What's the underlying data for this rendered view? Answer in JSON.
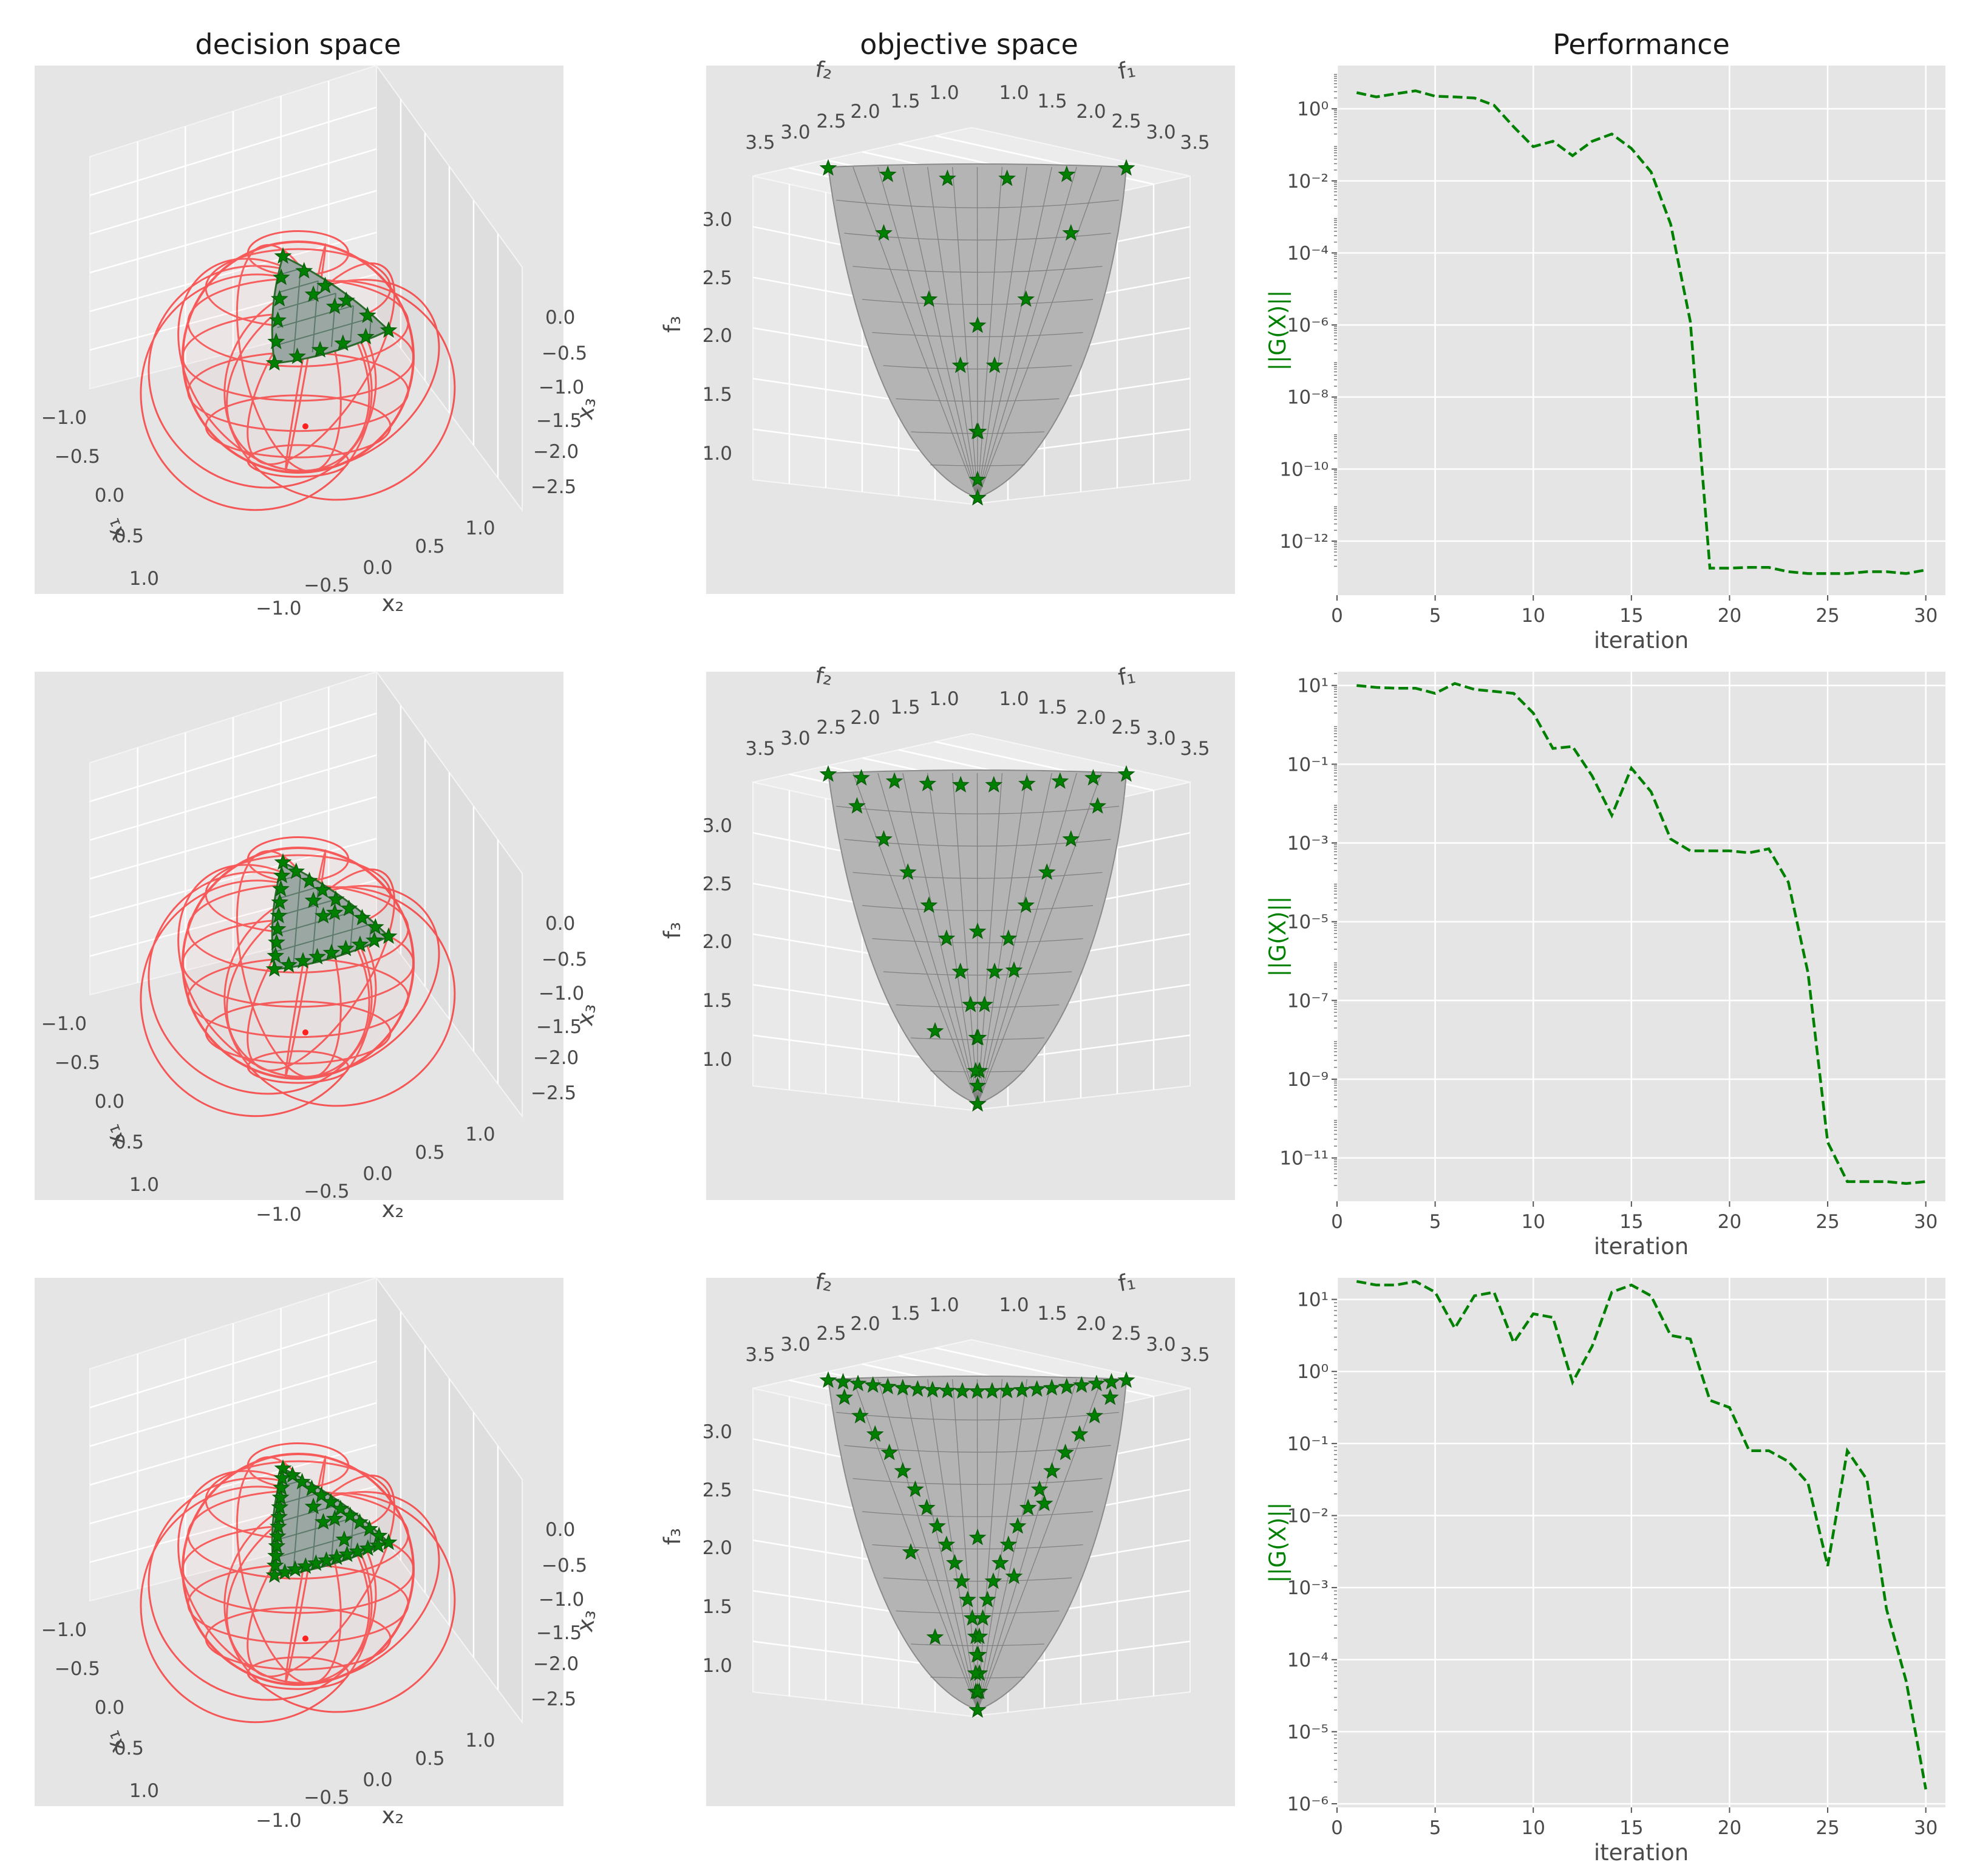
{
  "titles": [
    "decision space",
    "objective space",
    "Performance"
  ],
  "decision_space": {
    "x1_label": "x₁",
    "x2_label": "x₂",
    "x3_label": "x₃",
    "x1_ticks": [
      "−1.0",
      "−0.5",
      "0.0",
      "0.5",
      "1.0"
    ],
    "x2_ticks": [
      "−1.0",
      "−0.5",
      "0.0",
      "0.5",
      "1.0"
    ],
    "x3_ticks": [
      "0.0",
      "−0.5",
      "−1.0",
      "−1.5",
      "−2.0",
      "−2.5"
    ],
    "sphere_color": "#ff0000",
    "marker_color": "#008000"
  },
  "objective_space": {
    "f1_label": "f₁",
    "f2_label": "f₂",
    "f3_label": "f₃",
    "f1_ticks": [
      "1.0",
      "1.5",
      "2.0",
      "2.5",
      "3.0",
      "3.5"
    ],
    "f2_ticks": [
      "1.0",
      "1.5",
      "2.0",
      "2.5",
      "3.0",
      "3.5"
    ],
    "f3_ticks": [
      "3.0",
      "2.5",
      "2.0",
      "1.5",
      "1.0"
    ],
    "surface_color": "#b4b4b4",
    "marker_color": "#008000"
  },
  "chart_data": [
    {
      "type": "line",
      "title": "Performance",
      "xlabel": "iteration",
      "ylabel": "||G(X)||",
      "yscale": "log",
      "xlim": [
        0,
        31
      ],
      "xticks": [
        0,
        5,
        10,
        15,
        20,
        25,
        30
      ],
      "yexp_range": [
        -13.5,
        1.2
      ],
      "ytick_exps": [
        0,
        -2,
        -4,
        -6,
        -8,
        -10,
        -12
      ],
      "series": [
        {
          "name": "||G(X)||",
          "color": "#008000",
          "style": "dashed",
          "x": [
            1,
            2,
            3,
            4,
            5,
            6,
            7,
            8,
            9,
            10,
            11,
            12,
            13,
            14,
            15,
            16,
            17,
            18,
            19,
            20,
            21,
            22,
            23,
            24,
            25,
            26,
            27,
            28,
            29,
            30
          ],
          "y_log10": [
            0.45,
            0.33,
            0.42,
            0.5,
            0.35,
            0.33,
            0.3,
            0.1,
            -0.5,
            -1.05,
            -0.9,
            -1.3,
            -0.9,
            -0.7,
            -1.1,
            -1.75,
            -3.2,
            -5.9,
            -12.75,
            -12.75,
            -12.73,
            -12.73,
            -12.85,
            -12.9,
            -12.9,
            -12.9,
            -12.85,
            -12.85,
            -12.9,
            -12.8
          ]
        }
      ]
    },
    {
      "type": "line",
      "title": "",
      "xlabel": "iteration",
      "ylabel": "||G(X)||",
      "yscale": "log",
      "xlim": [
        0,
        31
      ],
      "xticks": [
        0,
        5,
        10,
        15,
        20,
        25,
        30
      ],
      "yexp_range": [
        -12.1,
        1.35
      ],
      "ytick_exps": [
        1,
        -1,
        -3,
        -5,
        -7,
        -9,
        -11
      ],
      "series": [
        {
          "name": "||G(X)||",
          "color": "#008000",
          "style": "dashed",
          "x": [
            1,
            2,
            3,
            4,
            5,
            6,
            7,
            8,
            9,
            10,
            11,
            12,
            13,
            14,
            15,
            16,
            17,
            18,
            19,
            20,
            21,
            22,
            23,
            24,
            25,
            26,
            27,
            28,
            29,
            30
          ],
          "y_log10": [
            1.0,
            0.95,
            0.93,
            0.93,
            0.8,
            1.05,
            0.9,
            0.85,
            0.8,
            0.3,
            -0.6,
            -0.55,
            -1.3,
            -2.3,
            -1.1,
            -1.7,
            -2.9,
            -3.2,
            -3.2,
            -3.2,
            -3.25,
            -3.15,
            -4.0,
            -6.3,
            -10.6,
            -11.6,
            -11.6,
            -11.6,
            -11.65,
            -11.6
          ]
        }
      ]
    },
    {
      "type": "line",
      "title": "",
      "xlabel": "iteration",
      "ylabel": "||G(X)||",
      "yscale": "log",
      "xlim": [
        0,
        31
      ],
      "xticks": [
        0,
        5,
        10,
        15,
        20,
        25,
        30
      ],
      "yexp_range": [
        -6.05,
        1.3
      ],
      "ytick_exps": [
        1,
        0,
        -1,
        -2,
        -3,
        -4,
        -5,
        -6
      ],
      "series": [
        {
          "name": "||G(X)||",
          "color": "#008000",
          "style": "dashed",
          "x": [
            1,
            2,
            3,
            4,
            5,
            6,
            7,
            8,
            9,
            10,
            11,
            12,
            13,
            14,
            15,
            16,
            17,
            18,
            19,
            20,
            21,
            22,
            23,
            24,
            25,
            26,
            27,
            28,
            29,
            30
          ],
          "y_log10": [
            1.25,
            1.2,
            1.2,
            1.25,
            1.1,
            0.6,
            1.05,
            1.1,
            0.4,
            0.8,
            0.75,
            -0.15,
            0.35,
            1.1,
            1.2,
            1.05,
            0.5,
            0.45,
            -0.4,
            -0.5,
            -1.1,
            -1.1,
            -1.25,
            -1.55,
            -2.7,
            -1.1,
            -1.5,
            -3.3,
            -4.3,
            -5.8
          ]
        }
      ]
    }
  ]
}
